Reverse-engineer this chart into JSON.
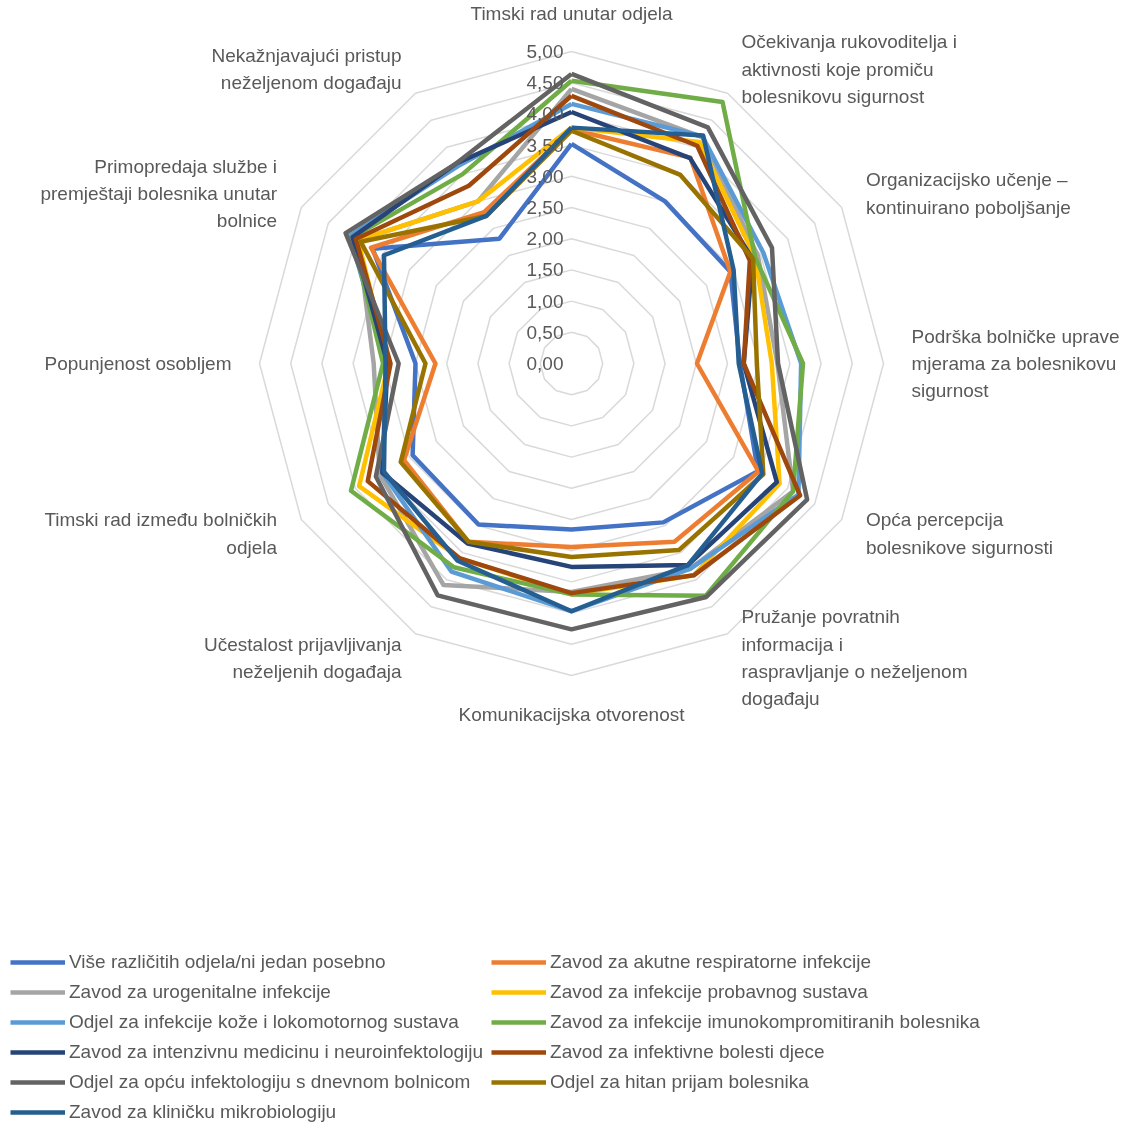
{
  "chart_data": {
    "type": "radar",
    "categories": [
      "Timski rad unutar odjela",
      "Očekivanja rukovoditelja i aktivnosti koje promiču bolesnikovu sigurnost",
      "Organizacijsko učenje – kontinuirano poboljšanje",
      "Podrška bolničke uprave mjerama za bolesnikovu sigurnost",
      "Opća percepcija bolesnikove sigurnosti",
      "Pružanje povratnih informacija i raspravljanje o neželjenom događaju",
      "Komunikacijska otvorenost",
      "Učestalost prijavljivanja neželjenih događaja",
      "Timski rad između bolničkih odjela",
      "Popunjenost osobljem",
      "Primopredaja službe i premještaji bolesnika unutar bolnice",
      "Nekažnjavajući pristup neželjenom događaju"
    ],
    "ylim": [
      0,
      5
    ],
    "yticks": [
      {
        "value": 0,
        "label": "0,00"
      },
      {
        "value": 0.5,
        "label": "0,50"
      },
      {
        "value": 1,
        "label": "1,00"
      },
      {
        "value": 1.5,
        "label": "1,50"
      },
      {
        "value": 2,
        "label": "2,00"
      },
      {
        "value": 2.5,
        "label": "2,50"
      },
      {
        "value": 3,
        "label": "3,00"
      },
      {
        "value": 3.5,
        "label": "3,50"
      },
      {
        "value": 4,
        "label": "4,00"
      },
      {
        "value": 4.5,
        "label": "4,50"
      },
      {
        "value": 5,
        "label": "5,00"
      }
    ],
    "grid": true,
    "legend": "bottom",
    "marker": "none",
    "line_style": "solid",
    "series": [
      {
        "name": "Više različitih odjela/ni jedan posebno",
        "color": "#4472c4",
        "values": [
          3.52,
          3.0,
          2.94,
          2.7,
          3.45,
          2.94,
          2.66,
          2.98,
          2.94,
          2.5,
          3.68,
          2.31
        ]
      },
      {
        "name": "Zavod za akutne respiratorne infekcije",
        "color": "#ed7d31",
        "values": [
          3.75,
          3.81,
          2.94,
          2.01,
          3.46,
          3.3,
          2.94,
          3.3,
          3.1,
          2.18,
          3.71,
          2.8
        ]
      },
      {
        "name": "Zavod za urogenitalne infekcije",
        "color": "#a5a5a5",
        "values": [
          4.4,
          4.19,
          3.45,
          3.3,
          4.1,
          3.8,
          3.66,
          4.1,
          3.55,
          3.17,
          3.95,
          3.0
        ]
      },
      {
        "name": "Zavod za infekcije probavnog sustava",
        "color": "#ffc000",
        "values": [
          3.78,
          4.1,
          3.4,
          3.21,
          3.85,
          3.92,
          3.7,
          3.6,
          3.93,
          2.93,
          3.95,
          3.0
        ]
      },
      {
        "name": "Odjel za infekcije kože i lokomotornog sustava",
        "color": "#5b9bd5",
        "values": [
          4.16,
          4.2,
          3.55,
          3.68,
          4.2,
          3.8,
          3.97,
          3.85,
          3.5,
          2.97,
          4.1,
          3.65
        ]
      },
      {
        "name": "Zavod za infekcije imunokompromitiranih bolesnika",
        "color": "#70ad47",
        "values": [
          4.53,
          4.84,
          3.4,
          3.71,
          4.1,
          4.3,
          3.7,
          3.77,
          4.08,
          3.02,
          4.05,
          3.5
        ]
      },
      {
        "name": "Zavod za intenzivnu medicinu i neuroinfektologiju",
        "color": "#264478",
        "values": [
          4.03,
          3.8,
          3.35,
          2.76,
          3.8,
          3.73,
          3.26,
          3.33,
          3.5,
          2.95,
          4.05,
          3.7
        ]
      },
      {
        "name": "Zavod za infektivne bolesti djece",
        "color": "#9e480e",
        "values": [
          4.29,
          4.03,
          3.3,
          2.76,
          4.23,
          3.92,
          3.68,
          3.6,
          3.77,
          2.9,
          3.99,
          3.29
        ]
      },
      {
        "name": "Odjel za opću infektologiju s dnevnom bolnicom",
        "color": "#636363",
        "values": [
          4.64,
          4.37,
          3.71,
          3.31,
          4.36,
          4.32,
          4.26,
          4.29,
          3.62,
          2.77,
          4.18,
          3.7
        ]
      },
      {
        "name": "Odjel za hitan prijam bolesnika",
        "color": "#997300",
        "values": [
          3.73,
          3.49,
          3.36,
          2.97,
          3.55,
          3.45,
          3.1,
          3.3,
          3.16,
          2.34,
          3.9,
          2.73
        ]
      },
      {
        "name": "Zavod za kliničku mikrobiologiju",
        "color": "#255e91",
        "values": [
          3.78,
          4.22,
          3.0,
          2.68,
          3.53,
          3.73,
          3.97,
          3.65,
          3.47,
          2.98,
          3.47,
          2.73
        ]
      }
    ]
  }
}
